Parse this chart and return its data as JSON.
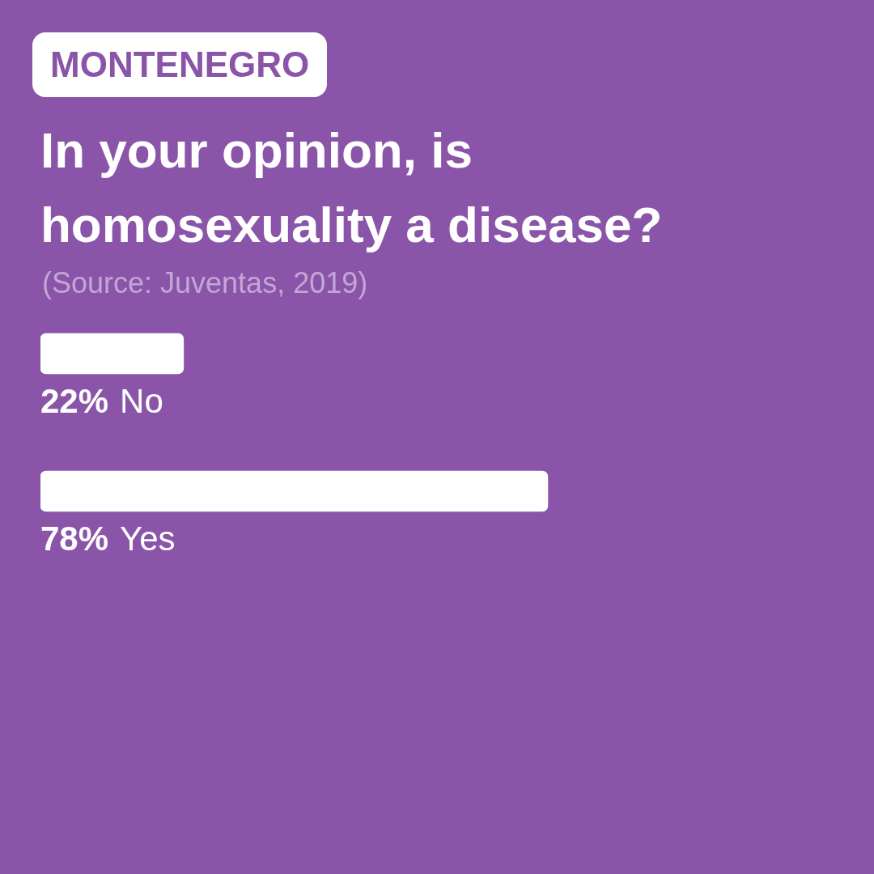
{
  "chart_data": {
    "type": "bar",
    "orientation": "horizontal",
    "subtitle": "MONTENEGRO",
    "title": "In your opinion, is homosexuality a disease?",
    "annotations": [
      "(Source: Juventas, 2019)"
    ],
    "categories": [
      "No",
      "Yes"
    ],
    "values": [
      22,
      78
    ],
    "value_labels": [
      "22%",
      "78%"
    ],
    "color": "#ffffff",
    "tick_labels": false
  }
}
